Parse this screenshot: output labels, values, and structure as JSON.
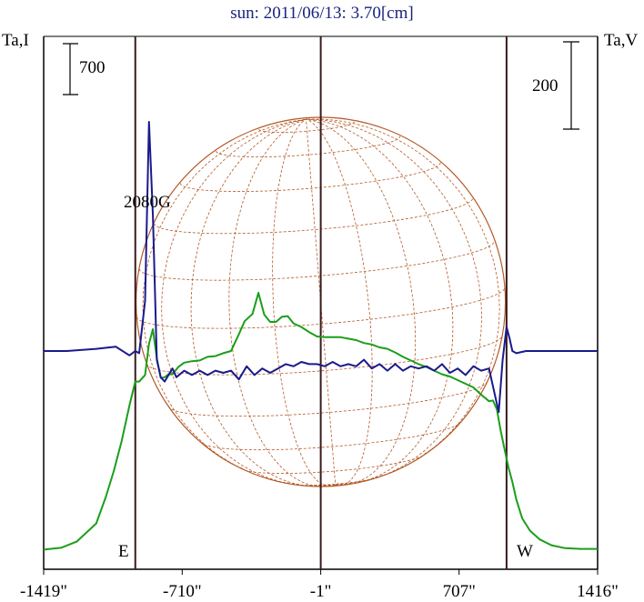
{
  "title": "sun: 2011/06/13: 3.70[cm]",
  "left_axis_label": "Ta,I",
  "right_axis_label": "Ta,V",
  "scale_left": "700",
  "scale_right": "200",
  "east_label": "E",
  "west_label": "W",
  "annotation": "2080G",
  "colors": {
    "intensity": "#1a9e1a",
    "polarization": "#1a1a8c",
    "disk": "#b45a28",
    "markers": "#3a1a1a",
    "title": "#1a237e"
  },
  "chart_data": {
    "type": "line",
    "x_ticks": [
      "-1419\"",
      "-710\"",
      "-1\"",
      "707\"",
      "1416\""
    ],
    "x_tick_values": [
      -1419,
      -710,
      -1,
      707,
      1416
    ],
    "xlim": [
      -1419,
      1416
    ],
    "vertical_markers": [
      -950,
      -1,
      950
    ],
    "disk_radius_arcsec": 945,
    "series": [
      {
        "key": "intensity",
        "x": [
          -1419,
          -1330,
          -1250,
          -1150,
          -1100,
          -1060,
          -1020,
          -980,
          -950,
          -930,
          -900,
          -880,
          -860,
          -840,
          -820,
          -800,
          -780,
          -760,
          -730,
          -700,
          -660,
          -620,
          -580,
          -540,
          -500,
          -460,
          -420,
          -390,
          -350,
          -320,
          -290,
          -260,
          -230,
          -200,
          -170,
          -140,
          -100,
          -60,
          -20,
          20,
          60,
          100,
          140,
          180,
          220,
          260,
          300,
          340,
          380,
          420,
          460,
          500,
          540,
          580,
          620,
          660,
          700,
          740,
          780,
          820,
          860,
          880,
          900,
          920,
          940,
          960,
          980,
          1000,
          1030,
          1070,
          1120,
          1180,
          1250,
          1330,
          1416
        ],
        "y": [
          70,
          95,
          180,
          430,
          800,
          1150,
          1560,
          2050,
          2380,
          2380,
          2470,
          2900,
          3100,
          2700,
          2430,
          2440,
          2480,
          2480,
          2580,
          2640,
          2660,
          2670,
          2720,
          2730,
          2770,
          2800,
          3030,
          3210,
          3310,
          3600,
          3300,
          3200,
          3200,
          3270,
          3280,
          3180,
          3130,
          3060,
          3000,
          2990,
          2990,
          2990,
          2970,
          2950,
          2910,
          2890,
          2850,
          2830,
          2780,
          2720,
          2670,
          2620,
          2580,
          2530,
          2480,
          2450,
          2400,
          2350,
          2300,
          2200,
          2110,
          2120,
          2000,
          1700,
          1450,
          1200,
          1000,
          760,
          500,
          330,
          210,
          130,
          90,
          80,
          80
        ],
        "unit_per_scale_bar": 700
      },
      {
        "key": "polarization",
        "x": [
          -1419,
          -1300,
          -1150,
          -1050,
          -980,
          -950,
          -930,
          -900,
          -880,
          -860,
          -840,
          -820,
          -800,
          -780,
          -760,
          -740,
          -700,
          -660,
          -620,
          -580,
          -540,
          -500,
          -460,
          -420,
          -380,
          -340,
          -300,
          -260,
          -220,
          -180,
          -140,
          -100,
          -60,
          -20,
          20,
          60,
          100,
          140,
          180,
          220,
          260,
          300,
          340,
          380,
          420,
          460,
          500,
          540,
          580,
          620,
          660,
          700,
          740,
          780,
          820,
          860,
          890,
          910,
          930,
          950,
          965,
          980,
          1000,
          1050,
          1150,
          1300,
          1416
        ],
        "y": [
          0,
          0,
          5,
          10,
          -10,
          0,
          -5,
          115,
          525,
          310,
          -20,
          -60,
          -70,
          -55,
          -40,
          -60,
          -45,
          -55,
          -45,
          -55,
          -45,
          -50,
          -45,
          -65,
          -35,
          -55,
          -40,
          -50,
          -40,
          -30,
          -35,
          -25,
          -30,
          -30,
          -35,
          -25,
          -35,
          -30,
          -35,
          -20,
          -40,
          -30,
          -45,
          -30,
          -45,
          -35,
          -40,
          -35,
          -45,
          -30,
          -50,
          -40,
          -55,
          -35,
          -45,
          -40,
          -100,
          -140,
          -20,
          55,
          30,
          0,
          -5,
          0,
          0,
          0,
          0
        ],
        "unit_per_scale_bar": 200
      }
    ]
  }
}
